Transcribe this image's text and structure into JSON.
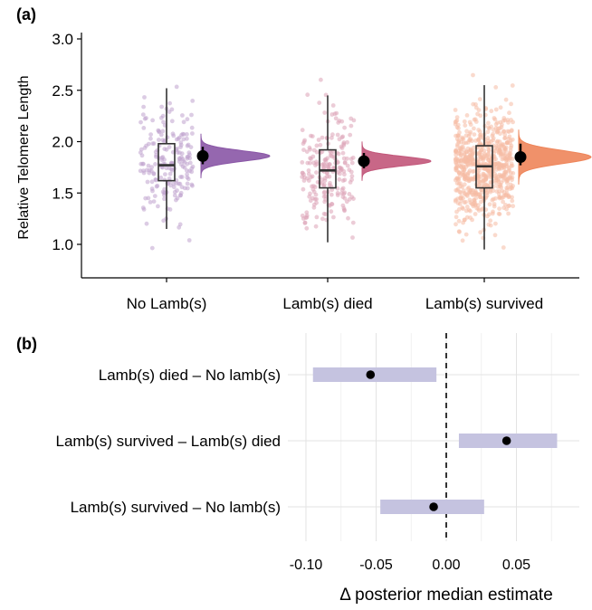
{
  "panel_a": {
    "label": "(a)"
  },
  "panel_b": {
    "label": "(b)"
  },
  "chart_data": [
    {
      "type": "box",
      "variant": "raincloud (jittered points + boxplot + half-violin + posterior mean point)",
      "title": "",
      "xlabel": "",
      "ylabel": "Relative Telomere Length",
      "ylim": [
        0.7,
        3.0
      ],
      "yticks": [
        "1.0",
        "1.5",
        "2.0",
        "2.5",
        "3.0"
      ],
      "grid": false,
      "categories": [
        "No Lamb(s)",
        "Lamb(s) died",
        "Lamb(s) survived"
      ],
      "colors": [
        "#8a56a6",
        "#c2577a",
        "#ee855a"
      ],
      "series": [
        {
          "category": "No Lamb(s)",
          "box": {
            "min": 1.15,
            "q1": 1.62,
            "median": 1.77,
            "q3": 1.98,
            "max": 2.52
          },
          "mean": 1.86,
          "mean_ci": [
            1.78,
            1.95
          ],
          "n_points": 200
        },
        {
          "category": "Lamb(s) died",
          "box": {
            "min": 1.02,
            "q1": 1.55,
            "median": 1.72,
            "q3": 1.92,
            "max": 2.45
          },
          "mean": 1.81,
          "mean_ci": [
            1.74,
            1.89
          ],
          "n_points": 220
        },
        {
          "category": "Lamb(s) survived",
          "box": {
            "min": 0.95,
            "q1": 1.55,
            "median": 1.76,
            "q3": 1.96,
            "max": 2.55
          },
          "mean": 1.85,
          "mean_ci": [
            1.77,
            1.98
          ],
          "n_points": 700
        }
      ]
    },
    {
      "type": "scatter",
      "variant": "point estimate with interval bars",
      "title": "",
      "xlabel": "Δ posterior median estimate",
      "ylabel": "",
      "xlim": [
        -0.105,
        0.085
      ],
      "xticks": [
        "-0.10",
        "-0.05",
        "0.00",
        "0.05"
      ],
      "reference_line": 0,
      "grid": true,
      "interval_color": "#c5c3e0",
      "categories": [
        "Lamb(s) died – No lamb(s)",
        "Lamb(s) survived – Lamb(s) died",
        "Lamb(s) survived – No lamb(s)"
      ],
      "points": [
        {
          "label": "Lamb(s) died – No lamb(s)",
          "estimate": -0.054,
          "low": -0.095,
          "high": -0.007
        },
        {
          "label": "Lamb(s) survived – Lamb(s) died",
          "estimate": 0.043,
          "low": 0.009,
          "high": 0.079
        },
        {
          "label": "Lamb(s) survived – No lamb(s)",
          "estimate": -0.009,
          "low": -0.047,
          "high": 0.027
        }
      ]
    }
  ]
}
